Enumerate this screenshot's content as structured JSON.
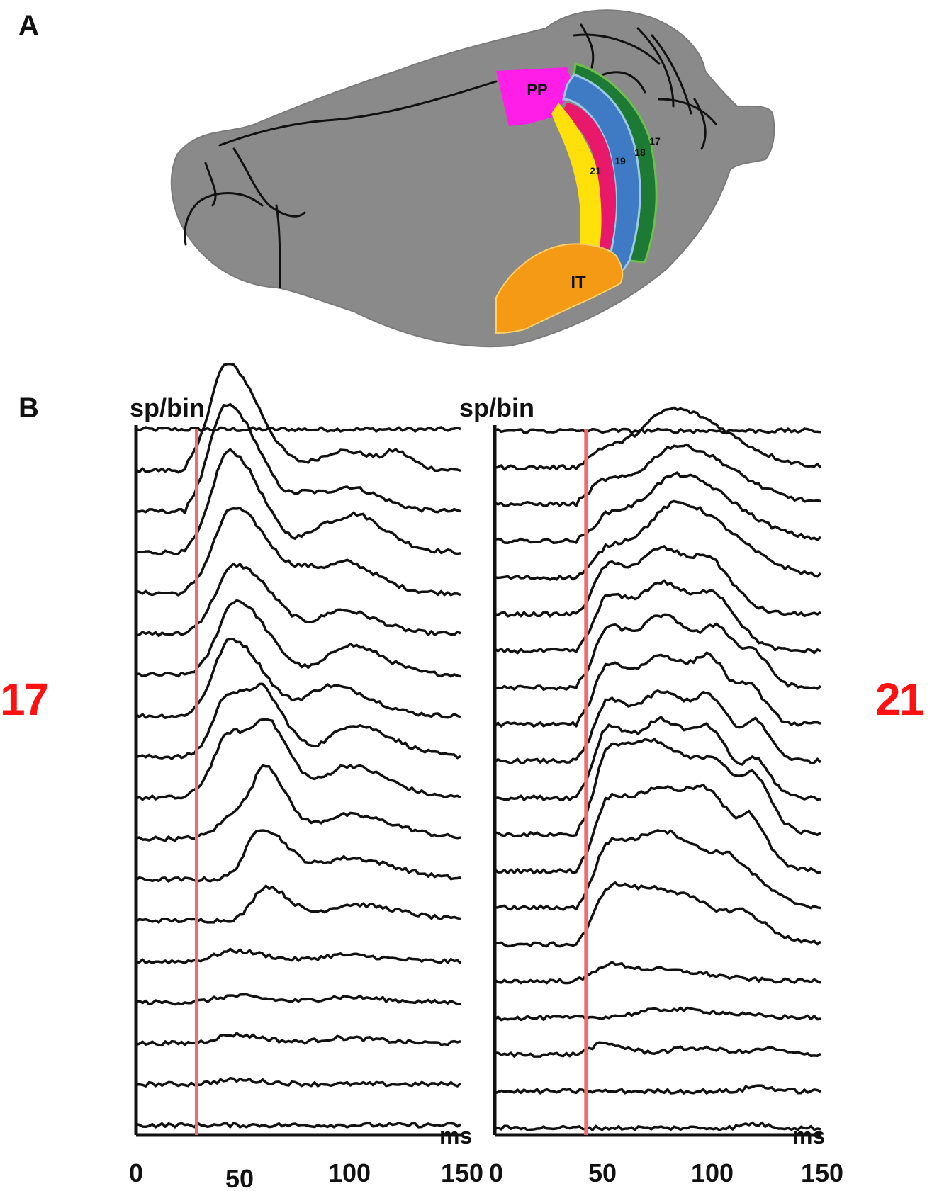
{
  "panels": {
    "a_label": "A",
    "b_label": "B"
  },
  "brain": {
    "areas": [
      {
        "id": "PP",
        "label": "PP",
        "color": "#ff1ee8"
      },
      {
        "id": "21",
        "label": "21",
        "color": "#ffe00a"
      },
      {
        "id": "19",
        "label": "19",
        "color": "#e8186a"
      },
      {
        "id": "18",
        "label": "18",
        "color": "#3f7ac4"
      },
      {
        "id": "17",
        "label": "17",
        "color": "#1c7a34"
      },
      {
        "id": "IT",
        "label": "IT",
        "color": "#f59a14"
      }
    ],
    "cortex_color": "#8a8a8a",
    "sulcus_color": "#111111"
  },
  "chart_data": [
    {
      "type": "line",
      "area_label": "17",
      "ylabel": "sp/bin",
      "xlabel": "ms",
      "x_ticks": [
        "0",
        "50",
        "100",
        "150"
      ],
      "xlim": [
        0,
        150
      ],
      "marker_ms": 28,
      "marker_color": "#f26a6a",
      "n_traces": 18,
      "traces": [
        {
          "onset_ms": 0,
          "peaks": []
        },
        {
          "onset_ms": 24,
          "peaks": [
            [
              42,
              1.0,
              8
            ],
            [
              95,
              0.18,
              10
            ],
            [
              120,
              0.12,
              4
            ]
          ]
        },
        {
          "onset_ms": 24,
          "peaks": [
            [
              42,
              1.0,
              8
            ],
            [
              80,
              0.15,
              6
            ],
            [
              100,
              0.2,
              8
            ]
          ]
        },
        {
          "onset_ms": 24,
          "peaks": [
            [
              43,
              0.95,
              8
            ],
            [
              88,
              0.25,
              8
            ],
            [
              105,
              0.22,
              8
            ]
          ]
        },
        {
          "onset_ms": 24,
          "peaks": [
            [
              45,
              0.8,
              9
            ],
            [
              82,
              0.18,
              8
            ],
            [
              100,
              0.2,
              8
            ]
          ]
        },
        {
          "onset_ms": 24,
          "peaks": [
            [
              46,
              0.65,
              9
            ],
            [
              95,
              0.22,
              9
            ]
          ]
        },
        {
          "onset_ms": 24,
          "peaks": [
            [
              46,
              0.7,
              8
            ],
            [
              98,
              0.28,
              9
            ]
          ]
        },
        {
          "onset_ms": 24,
          "peaks": [
            [
              44,
              0.72,
              8
            ],
            [
              90,
              0.28,
              10
            ]
          ]
        },
        {
          "onset_ms": 24,
          "peaks": [
            [
              43,
              0.6,
              7
            ],
            [
              60,
              0.4,
              6
            ],
            [
              100,
              0.3,
              10
            ]
          ]
        },
        {
          "onset_ms": 24,
          "peaks": [
            [
              44,
              0.62,
              8
            ],
            [
              62,
              0.45,
              6
            ],
            [
              98,
              0.3,
              10
            ]
          ]
        },
        {
          "onset_ms": 24,
          "peaks": [
            [
              50,
              0.3,
              9
            ],
            [
              60,
              0.45,
              5
            ],
            [
              98,
              0.22,
              12
            ]
          ]
        },
        {
          "onset_ms": 24,
          "peaks": [
            [
              58,
              0.48,
              7
            ],
            [
              98,
              0.2,
              12
            ]
          ]
        },
        {
          "onset_ms": 24,
          "peaks": [
            [
              60,
              0.32,
              6
            ],
            [
              100,
              0.15,
              12
            ]
          ]
        },
        {
          "onset_ms": 24,
          "peaks": [
            [
              45,
              0.1,
              8
            ],
            [
              95,
              0.06,
              10
            ]
          ]
        },
        {
          "onset_ms": 24,
          "peaks": [
            [
              45,
              0.06,
              8
            ],
            [
              95,
              0.05,
              10
            ]
          ]
        },
        {
          "onset_ms": 24,
          "peaks": [
            [
              45,
              0.08,
              8
            ],
            [
              95,
              0.05,
              10
            ]
          ]
        },
        {
          "onset_ms": 24,
          "peaks": [
            [
              45,
              0.04,
              8
            ]
          ]
        },
        {
          "onset_ms": 24,
          "peaks": []
        }
      ]
    },
    {
      "type": "line",
      "area_label": "21",
      "ylabel": "sp/bin",
      "xlabel": "ms",
      "x_ticks": [
        "0",
        "50",
        "100",
        "150"
      ],
      "xlim": [
        0,
        150
      ],
      "marker_ms": 42,
      "marker_color": "#f26a6a",
      "n_traces": 20,
      "traces": [
        {
          "onset_ms": 0,
          "peaks": []
        },
        {
          "onset_ms": 38,
          "peaks": [
            [
              50,
              0.15,
              6
            ],
            [
              82,
              0.55,
              14
            ]
          ]
        },
        {
          "onset_ms": 38,
          "peaks": [
            [
              50,
              0.2,
              6
            ],
            [
              84,
              0.55,
              14
            ]
          ]
        },
        {
          "onset_ms": 38,
          "peaks": [
            [
              52,
              0.22,
              6
            ],
            [
              84,
              0.62,
              14
            ]
          ]
        },
        {
          "onset_ms": 38,
          "peaks": [
            [
              52,
              0.25,
              6
            ],
            [
              84,
              0.7,
              14
            ]
          ]
        },
        {
          "onset_ms": 38,
          "peaks": [
            [
              52,
              0.45,
              6
            ],
            [
              78,
              0.6,
              10
            ],
            [
              100,
              0.25,
              6
            ]
          ]
        },
        {
          "onset_ms": 38,
          "peaks": [
            [
              52,
              0.5,
              6
            ],
            [
              78,
              0.62,
              10
            ],
            [
              102,
              0.3,
              6
            ]
          ]
        },
        {
          "onset_ms": 38,
          "peaks": [
            [
              52,
              0.55,
              6
            ],
            [
              78,
              0.65,
              10
            ],
            [
              104,
              0.35,
              6
            ],
            [
              120,
              0.2,
              4
            ]
          ]
        },
        {
          "onset_ms": 38,
          "peaks": [
            [
              52,
              0.55,
              6
            ],
            [
              78,
              0.62,
              10
            ],
            [
              100,
              0.35,
              6
            ],
            [
              118,
              0.25,
              4
            ]
          ]
        },
        {
          "onset_ms": 38,
          "peaks": [
            [
              52,
              0.55,
              6
            ],
            [
              78,
              0.62,
              10
            ],
            [
              100,
              0.32,
              6
            ],
            [
              120,
              0.3,
              4
            ]
          ]
        },
        {
          "onset_ms": 38,
          "peaks": [
            [
              52,
              0.65,
              6
            ],
            [
              78,
              0.7,
              10
            ],
            [
              100,
              0.32,
              6
            ],
            [
              120,
              0.28,
              4
            ]
          ]
        },
        {
          "onset_ms": 38,
          "peaks": [
            [
              52,
              0.7,
              6
            ],
            [
              76,
              0.8,
              12
            ],
            [
              104,
              0.35,
              8
            ],
            [
              120,
              0.3,
              4
            ]
          ]
        },
        {
          "onset_ms": 38,
          "peaks": [
            [
              52,
              0.62,
              6
            ],
            [
              78,
              0.75,
              12
            ],
            [
              100,
              0.3,
              8
            ],
            [
              118,
              0.28,
              4
            ]
          ]
        },
        {
          "onset_ms": 38,
          "peaks": [
            [
              52,
              0.55,
              6
            ],
            [
              78,
              0.7,
              12
            ],
            [
              110,
              0.25,
              8
            ]
          ]
        },
        {
          "onset_ms": 38,
          "peaks": [
            [
              52,
              0.45,
              6
            ],
            [
              78,
              0.5,
              14
            ],
            [
              115,
              0.15,
              6
            ]
          ]
        },
        {
          "onset_ms": 38,
          "peaks": [
            [
              52,
              0.15,
              6
            ],
            [
              78,
              0.1,
              12
            ]
          ]
        },
        {
          "onset_ms": 38,
          "peaks": [
            [
              80,
              0.08,
              14
            ]
          ]
        },
        {
          "onset_ms": 38,
          "peaks": [
            [
              50,
              0.1,
              6
            ],
            [
              90,
              0.06,
              10
            ],
            [
              125,
              0.05,
              4
            ]
          ]
        },
        {
          "onset_ms": 38,
          "peaks": [
            [
              120,
              0.05,
              4
            ]
          ]
        },
        {
          "onset_ms": 38,
          "peaks": [
            [
              118,
              0.04,
              4
            ]
          ]
        }
      ]
    }
  ]
}
